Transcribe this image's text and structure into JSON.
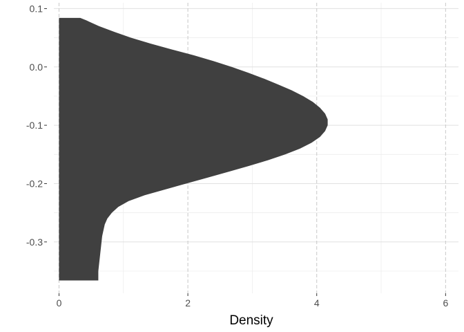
{
  "chart_data": {
    "type": "area",
    "orientation": "horizontal-density",
    "title": "",
    "xlabel": "Density",
    "ylabel": "",
    "xlim": [
      -0.08,
      6.2
    ],
    "ylim": [
      -0.388,
      0.11
    ],
    "x_ticks": [
      0,
      2,
      4,
      6
    ],
    "x_tick_labels": [
      "0",
      "2",
      "4",
      "6"
    ],
    "y_ticks": [
      0.1,
      0.0,
      -0.1,
      -0.2,
      -0.3
    ],
    "y_tick_labels": [
      "0.1",
      "0.0",
      "-0.1",
      "-0.2",
      "-0.3"
    ],
    "grid": true,
    "x_major_gridlines": "dashed",
    "fill_color": "#404040",
    "series": [
      {
        "y": [
          0.084,
          0.08,
          0.07,
          0.06,
          0.05,
          0.04,
          0.03,
          0.02,
          0.01,
          0.0,
          -0.01,
          -0.02,
          -0.03,
          -0.04,
          -0.05,
          -0.06,
          -0.07,
          -0.08,
          -0.09,
          -0.1,
          -0.11,
          -0.12,
          -0.13,
          -0.14,
          -0.15,
          -0.16,
          -0.17,
          -0.18,
          -0.19,
          -0.2,
          -0.21,
          -0.22,
          -0.23,
          -0.24,
          -0.25,
          -0.26,
          -0.27,
          -0.28,
          -0.29,
          -0.3,
          -0.31,
          -0.32,
          -0.33,
          -0.34,
          -0.35,
          -0.366
        ],
        "density": [
          0.33,
          0.42,
          0.62,
          0.86,
          1.12,
          1.42,
          1.75,
          2.09,
          2.4,
          2.68,
          2.94,
          3.18,
          3.4,
          3.61,
          3.79,
          3.94,
          4.05,
          4.13,
          4.17,
          4.17,
          4.13,
          4.05,
          3.92,
          3.74,
          3.51,
          3.24,
          2.94,
          2.62,
          2.3,
          1.97,
          1.65,
          1.33,
          1.08,
          0.92,
          0.82,
          0.75,
          0.71,
          0.69,
          0.67,
          0.66,
          0.65,
          0.64,
          0.63,
          0.62,
          0.61,
          0.61
        ]
      }
    ]
  }
}
